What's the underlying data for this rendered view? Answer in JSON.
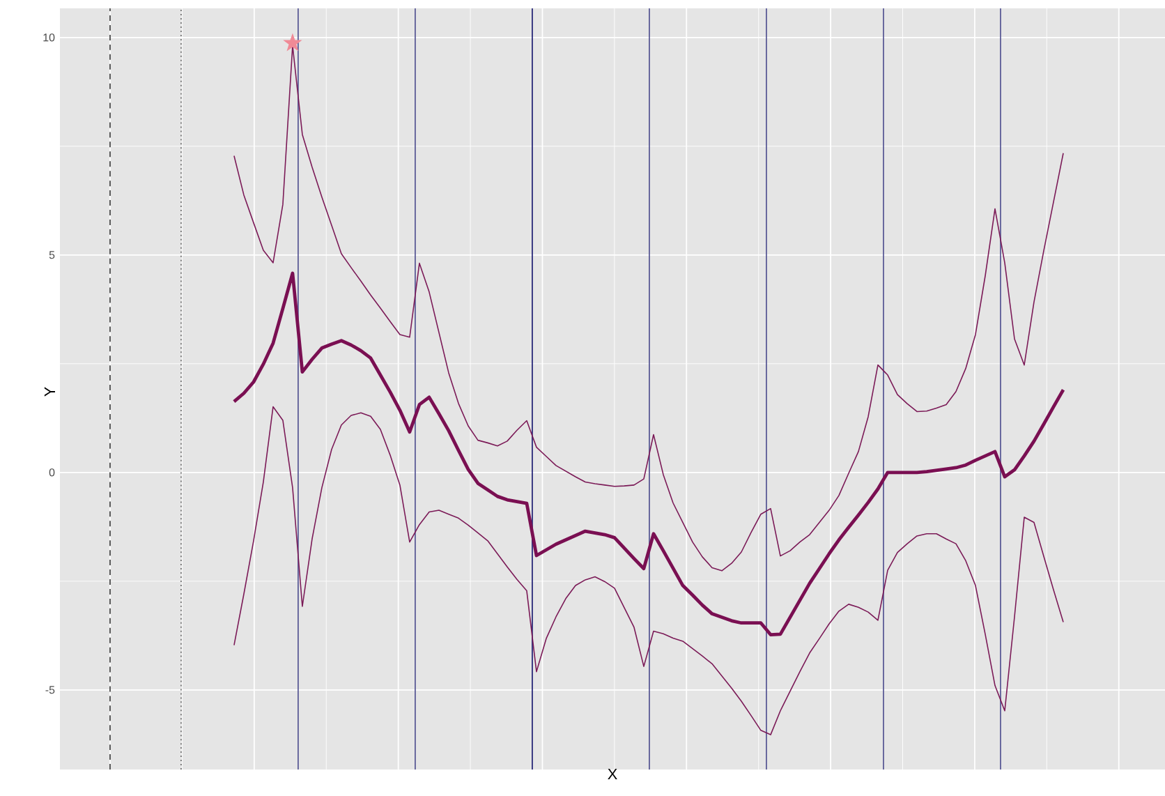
{
  "chart_data": {
    "type": "line",
    "xlabel": "X",
    "ylabel": "Y",
    "categories": [
      null,
      null,
      null,
      null,
      null,
      null,
      null,
      null,
      null,
      null,
      null,
      null,
      null,
      null,
      null,
      null,
      null,
      null,
      null,
      null,
      null,
      null,
      null,
      null,
      null,
      null,
      null,
      null,
      null,
      null,
      null,
      null,
      null,
      null,
      null,
      null,
      null,
      null,
      null,
      null,
      null,
      null,
      null,
      null,
      null,
      null,
      null,
      null,
      null,
      null,
      null,
      null,
      null,
      null,
      null,
      null,
      null,
      null,
      null,
      null,
      null,
      null,
      null,
      null,
      null,
      null,
      null,
      null,
      null,
      null,
      null,
      null,
      null,
      null,
      null,
      null,
      null,
      null,
      null,
      null,
      null,
      null,
      null,
      null,
      null,
      null
    ],
    "ylim": [
      -6.83,
      10.67
    ],
    "yticks": [
      -5,
      0,
      5,
      10
    ],
    "tick_labels": "y",
    "grid": true,
    "line_style": "solid",
    "marker": "none",
    "series": [
      {
        "color": "#7a0f52",
        "values": [
          1.63,
          1.82,
          2.08,
          2.49,
          2.97,
          3.77,
          4.58,
          2.31,
          2.6,
          2.86,
          2.95,
          3.03,
          2.93,
          2.8,
          2.63,
          2.24,
          1.85,
          1.43,
          0.93,
          1.56,
          1.73,
          1.35,
          0.96,
          0.51,
          0.07,
          -0.25,
          -0.4,
          -0.55,
          -0.63,
          -0.67,
          -0.71,
          -1.91,
          -1.78,
          -1.65,
          -1.55,
          -1.45,
          -1.35,
          -1.39,
          -1.43,
          -1.5,
          -1.74,
          -1.98,
          -2.21,
          -1.41,
          -1.8,
          -2.2,
          -2.6,
          -2.82,
          -3.05,
          -3.25,
          -3.33,
          -3.41,
          -3.46,
          -3.46,
          -3.46,
          -3.73,
          -3.72,
          -3.33,
          -2.94,
          -2.55,
          -2.21,
          -1.87,
          -1.55,
          -1.26,
          -0.98,
          -0.69,
          -0.38,
          0,
          0,
          0,
          0,
          0.02,
          0.05,
          0.08,
          0.11,
          0.17,
          0.28,
          0.38,
          0.48,
          -0.1,
          0.06,
          0.38,
          0.72,
          1.11,
          1.51,
          1.9
        ]
      },
      {
        "color": "#7b1a57",
        "values": [
          7.28,
          6.38,
          5.74,
          5.11,
          4.82,
          6.16,
          9.81,
          7.77,
          7.02,
          6.33,
          5.68,
          5.03,
          4.71,
          4.4,
          4.08,
          3.78,
          3.47,
          3.17,
          3.11,
          4.81,
          4.15,
          3.22,
          2.29,
          1.59,
          1.07,
          0.74,
          0.68,
          0.61,
          0.72,
          0.97,
          1.19,
          0.58,
          0.37,
          0.16,
          0.03,
          -0.1,
          -0.22,
          -0.26,
          -0.29,
          -0.32,
          -0.31,
          -0.29,
          -0.15,
          0.87,
          -0.05,
          -0.7,
          -1.15,
          -1.6,
          -1.94,
          -2.19,
          -2.26,
          -2.09,
          -1.83,
          -1.38,
          -0.96,
          -0.83,
          -1.92,
          -1.8,
          -1.6,
          -1.43,
          -1.15,
          -0.87,
          -0.53,
          -0.02,
          0.48,
          1.28,
          2.47,
          2.24,
          1.79,
          1.58,
          1.4,
          1.41,
          1.48,
          1.56,
          1.86,
          2.39,
          3.17,
          4.52,
          6.06,
          4.82,
          3.07,
          2.47,
          3.92,
          5.1,
          6.22,
          7.34
        ]
      },
      {
        "color": "#7b1a57",
        "values": [
          -3.97,
          -2.8,
          -1.57,
          -0.22,
          1.51,
          1.2,
          -0.35,
          -3.08,
          -1.53,
          -0.35,
          0.53,
          1.09,
          1.31,
          1.37,
          1.29,
          0.99,
          0.4,
          -0.29,
          -1.6,
          -1.2,
          -0.91,
          -0.87,
          -0.96,
          -1.05,
          -1.21,
          -1.39,
          -1.57,
          -1.87,
          -2.17,
          -2.46,
          -2.72,
          -4.58,
          -3.82,
          -3.32,
          -2.9,
          -2.6,
          -2.47,
          -2.4,
          -2.51,
          -2.66,
          -3.11,
          -3.56,
          -4.46,
          -3.65,
          -3.71,
          -3.81,
          -3.88,
          -4.05,
          -4.22,
          -4.4,
          -4.68,
          -4.96,
          -5.26,
          -5.59,
          -5.93,
          -6.03,
          -5.48,
          -5.03,
          -4.58,
          -4.15,
          -3.82,
          -3.48,
          -3.19,
          -3.03,
          -3.1,
          -3.21,
          -3.4,
          -2.25,
          -1.84,
          -1.64,
          -1.46,
          -1.41,
          -1.41,
          -1.53,
          -1.64,
          -2.03,
          -2.6,
          -3.72,
          -4.9,
          -5.48,
          -3.32,
          -1.03,
          -1.15,
          -1.93,
          -2.7,
          -3.44
        ]
      },
      {
        "type": "scatter",
        "marker": "star",
        "color": "#f08a96",
        "values": [
          null,
          null,
          null,
          null,
          null,
          null,
          9.87,
          null,
          null,
          null,
          null,
          null,
          null,
          null,
          null,
          null,
          null,
          null,
          null,
          null,
          null,
          null,
          null,
          null,
          null,
          null,
          null,
          null,
          null,
          null,
          null,
          null,
          null,
          null,
          null,
          null,
          null,
          null,
          null,
          null,
          null,
          null,
          null,
          null,
          null,
          null,
          null,
          null,
          null,
          null,
          null,
          null,
          null,
          null,
          null,
          null,
          null,
          null,
          null,
          null,
          null,
          null,
          null,
          null,
          null,
          null,
          null,
          null,
          null,
          null,
          null,
          null,
          null,
          null,
          null,
          null,
          null,
          null,
          null,
          null,
          null,
          null,
          null,
          null,
          null,
          null
        ]
      }
    ]
  }
}
